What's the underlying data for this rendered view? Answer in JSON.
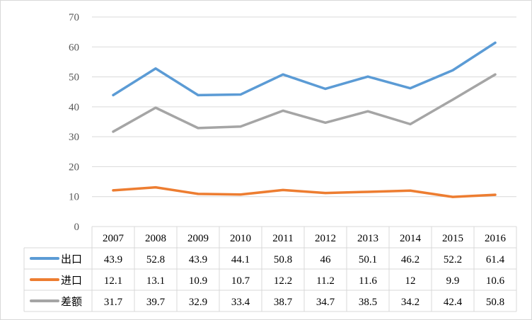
{
  "chart_data": {
    "type": "line",
    "title": "",
    "xlabel": "",
    "ylabel": "",
    "categories": [
      "2007",
      "2008",
      "2009",
      "2010",
      "2011",
      "2012",
      "2013",
      "2014",
      "2015",
      "2016"
    ],
    "ylim": [
      0,
      70
    ],
    "yticks": [
      "0",
      "10",
      "20",
      "30",
      "40",
      "50",
      "60",
      "70"
    ],
    "grid": true,
    "legend": "data-table",
    "series": [
      {
        "name": "出口",
        "color": "#5b9bd5",
        "values": [
          43.9,
          52.8,
          43.9,
          44.1,
          50.8,
          46,
          50.1,
          46.2,
          52.2,
          61.4
        ],
        "labels": [
          "43.9",
          "52.8",
          "43.9",
          "44.1",
          "50.8",
          "46",
          "50.1",
          "46.2",
          "52.2",
          "61.4"
        ]
      },
      {
        "name": "进口",
        "color": "#ed7d31",
        "values": [
          12.1,
          13.1,
          10.9,
          10.7,
          12.2,
          11.2,
          11.6,
          12,
          9.9,
          10.6
        ],
        "labels": [
          "12.1",
          "13.1",
          "10.9",
          "10.7",
          "12.2",
          "11.2",
          "11.6",
          "12",
          "9.9",
          "10.6"
        ]
      },
      {
        "name": "差额",
        "color": "#a5a5a5",
        "values": [
          31.7,
          39.7,
          32.9,
          33.4,
          38.7,
          34.7,
          38.5,
          34.2,
          42.4,
          50.8
        ],
        "labels": [
          "31.7",
          "39.7",
          "32.9",
          "33.4",
          "38.7",
          "34.7",
          "38.5",
          "34.2",
          "42.4",
          "50.8"
        ]
      }
    ]
  }
}
